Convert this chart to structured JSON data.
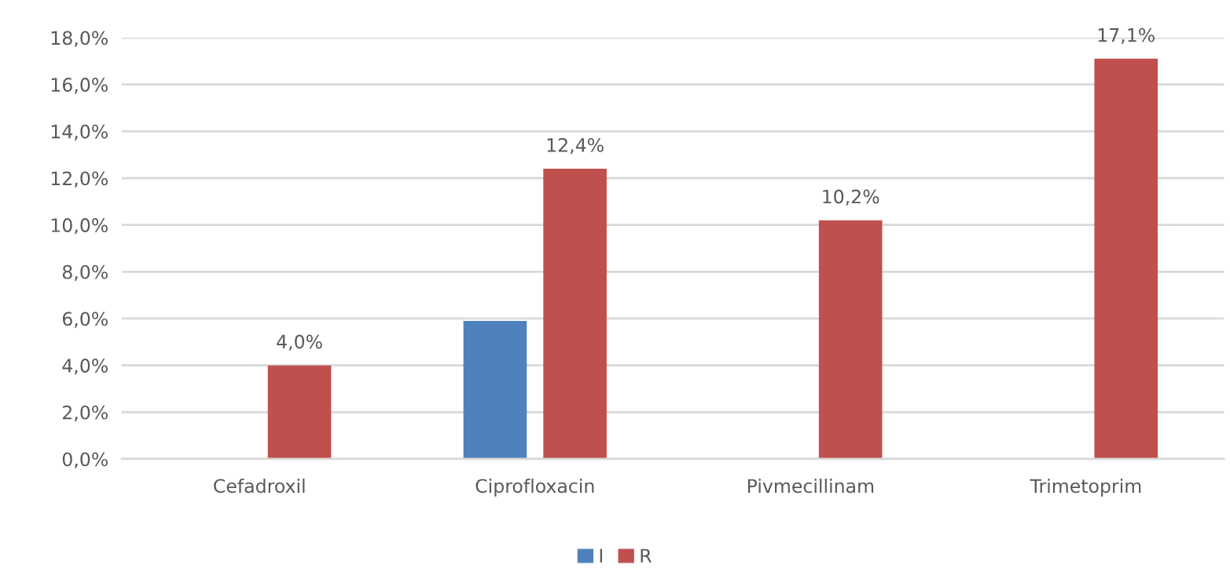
{
  "chart_data": {
    "type": "bar",
    "categories": [
      "Cefadroxil",
      "Ciprofloxacin",
      "Pivmecillinam",
      "Trimetoprim"
    ],
    "series": [
      {
        "name": "I",
        "color": "#4f81bd",
        "values": [
          null,
          5.9,
          null,
          null
        ],
        "value_labels": [
          null,
          null,
          null,
          null
        ]
      },
      {
        "name": "R",
        "color": "#c0504d",
        "values": [
          4.0,
          12.4,
          10.2,
          17.1
        ],
        "value_labels": [
          "4,0%",
          "12,4%",
          "10,2%",
          "17,1%"
        ]
      }
    ],
    "ylim": [
      0,
      18
    ],
    "yticks": [
      {
        "value": 0,
        "label": "0,0%"
      },
      {
        "value": 2,
        "label": "2,0%"
      },
      {
        "value": 4,
        "label": "4,0%"
      },
      {
        "value": 6,
        "label": "6,0%"
      },
      {
        "value": 8,
        "label": "8,0%"
      },
      {
        "value": 10,
        "label": "10,0%"
      },
      {
        "value": 12,
        "label": "12,0%"
      },
      {
        "value": 14,
        "label": "14,0%"
      },
      {
        "value": 16,
        "label": "16,0%"
      },
      {
        "value": 18,
        "label": "18,0%"
      }
    ],
    "grid": "y",
    "legend": "bottom"
  }
}
